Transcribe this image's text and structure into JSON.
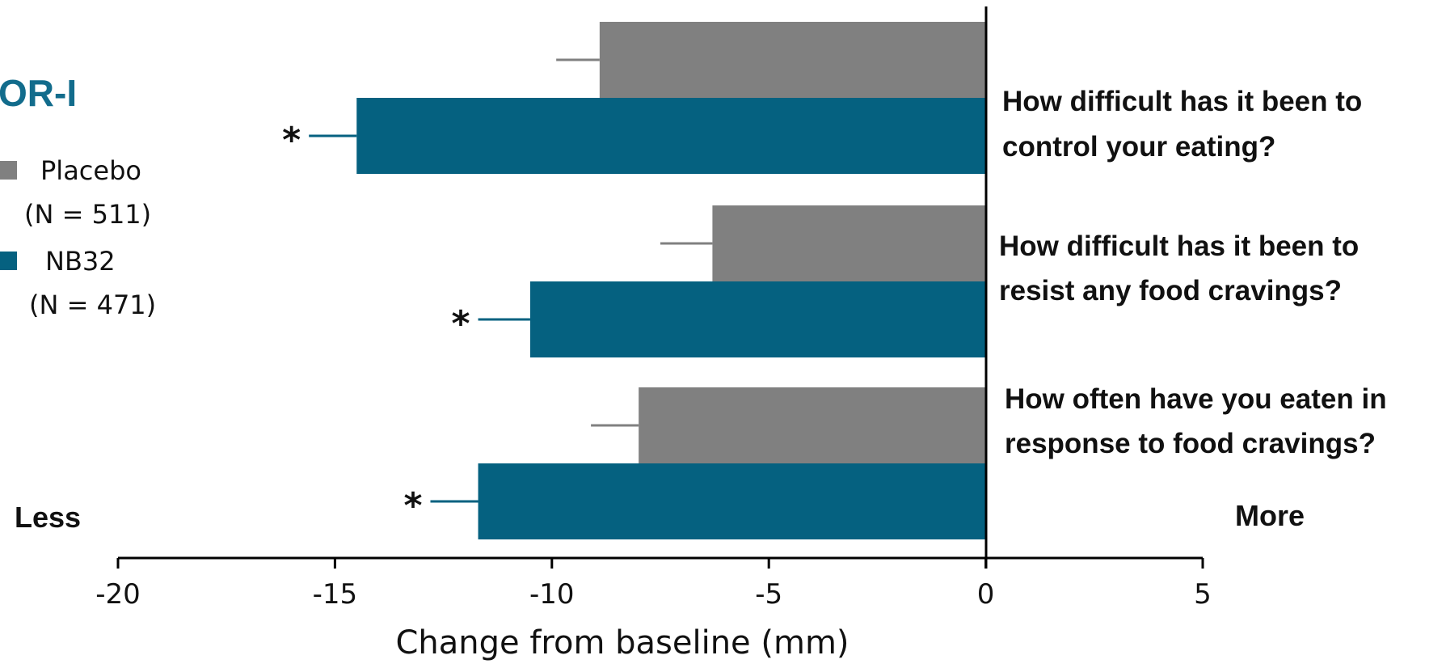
{
  "chart_data": {
    "type": "bar",
    "orientation": "horizontal",
    "title": "OR-I",
    "xlabel": "Change from baseline (mm)",
    "xlim": [
      -20,
      5
    ],
    "xticks": [
      "-20",
      "-15",
      "-10",
      "-5",
      "0",
      "5"
    ],
    "xtick_values": [
      -20,
      -15,
      -10,
      -5,
      0,
      5
    ],
    "direction_labels": {
      "left": "Less",
      "right": "More"
    },
    "categories": [
      "How difficult has it been to control your eating?",
      "How difficult has it been to resist any food cravings?",
      "How often have you eaten in response to food cravings?"
    ],
    "category_lines": [
      [
        "How difficult has it been to",
        "control your eating?"
      ],
      [
        "How difficult has it been to",
        "resist any food cravings?"
      ],
      [
        "How often have you eaten in",
        "response to food cravings?"
      ]
    ],
    "series": [
      {
        "name": "Placebo",
        "legend_n": "(N = 511)",
        "color": "#808080",
        "values": [
          -8.9,
          -6.3,
          -8.0
        ],
        "error": [
          1.0,
          1.2,
          1.1
        ],
        "significance": [
          "",
          "",
          ""
        ]
      },
      {
        "name": "NB32",
        "legend_n": "(N = 471)",
        "color": "#056180",
        "values": [
          -14.5,
          -10.5,
          -11.7
        ],
        "error": [
          1.1,
          1.2,
          1.1
        ],
        "significance": [
          "*",
          "*",
          "*"
        ]
      }
    ],
    "legend_position": "left",
    "grid": false
  },
  "colors": {
    "title": "#126C8C",
    "axis": "#000000"
  }
}
